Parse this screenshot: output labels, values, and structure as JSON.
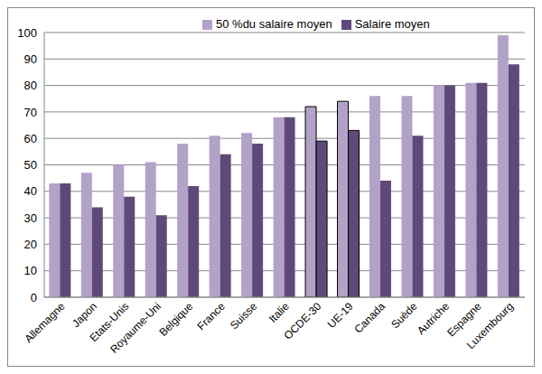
{
  "chart_data": {
    "type": "bar",
    "categories": [
      "Allemagne",
      "Japon",
      "Etats-Unis",
      "Royaume-Uni",
      "Belgique",
      "France",
      "Suisse",
      "Italie",
      "OCDE-30",
      "UE-19",
      "Canada",
      "Suède",
      "Autriche",
      "Espagne",
      "Luxembourg"
    ],
    "series": [
      {
        "name": "50 %du salaire moyen",
        "color": "#b3a2c7",
        "values": [
          43,
          47,
          50,
          51,
          58,
          61,
          62,
          68,
          72,
          74,
          76,
          76,
          80,
          81,
          99
        ]
      },
      {
        "name": "Salaire moyen",
        "color": "#60497a",
        "values": [
          43,
          34,
          38,
          31,
          42,
          54,
          58,
          68,
          59,
          63,
          44,
          61,
          80,
          81,
          88
        ]
      }
    ],
    "ylim": [
      0,
      100
    ],
    "yticks": [
      0,
      10,
      20,
      30,
      40,
      50,
      60,
      70,
      80,
      90,
      100
    ],
    "grid": true,
    "legend": "top"
  }
}
